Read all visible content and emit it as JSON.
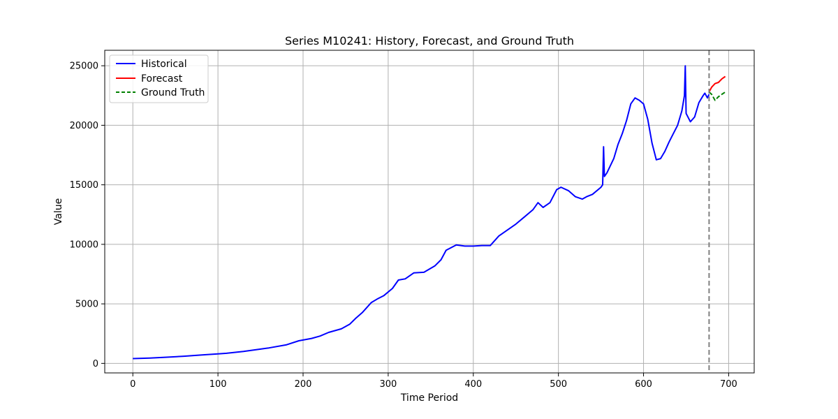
{
  "chart_data": {
    "type": "line",
    "title": "Series M10241: History, Forecast, and Ground Truth",
    "xlabel": "Time Period",
    "ylabel": "Value",
    "xlim": [
      -33,
      730
    ],
    "ylim": [
      -800,
      26300
    ],
    "xticks": [
      0,
      100,
      200,
      300,
      400,
      500,
      600,
      700
    ],
    "yticks": [
      0,
      5000,
      10000,
      15000,
      20000,
      25000
    ],
    "xtick_labels": [
      "0",
      "100",
      "200",
      "300",
      "400",
      "500",
      "600",
      "700"
    ],
    "ytick_labels": [
      "0",
      "5000",
      "10000",
      "15000",
      "20000",
      "25000"
    ],
    "grid": true,
    "legend_position": "top-left",
    "forecast_start": 677,
    "series": [
      {
        "name": "Historical",
        "color": "#0000ff",
        "style": "solid",
        "points": [
          [
            0,
            400
          ],
          [
            20,
            450
          ],
          [
            40,
            520
          ],
          [
            60,
            600
          ],
          [
            80,
            700
          ],
          [
            100,
            800
          ],
          [
            110,
            850
          ],
          [
            130,
            1000
          ],
          [
            150,
            1200
          ],
          [
            160,
            1300
          ],
          [
            180,
            1550
          ],
          [
            195,
            1900
          ],
          [
            210,
            2100
          ],
          [
            220,
            2300
          ],
          [
            230,
            2600
          ],
          [
            245,
            2900
          ],
          [
            255,
            3300
          ],
          [
            262,
            3800
          ],
          [
            270,
            4300
          ],
          [
            280,
            5100
          ],
          [
            287,
            5400
          ],
          [
            295,
            5700
          ],
          [
            305,
            6300
          ],
          [
            312,
            7000
          ],
          [
            320,
            7100
          ],
          [
            330,
            7600
          ],
          [
            342,
            7650
          ],
          [
            355,
            8200
          ],
          [
            362,
            8700
          ],
          [
            368,
            9500
          ],
          [
            380,
            9950
          ],
          [
            390,
            9850
          ],
          [
            400,
            9850
          ],
          [
            410,
            9900
          ],
          [
            420,
            9900
          ],
          [
            430,
            10700
          ],
          [
            440,
            11200
          ],
          [
            450,
            11700
          ],
          [
            460,
            12300
          ],
          [
            470,
            12900
          ],
          [
            476,
            13500
          ],
          [
            482,
            13100
          ],
          [
            490,
            13500
          ],
          [
            498,
            14600
          ],
          [
            503,
            14800
          ],
          [
            512,
            14500
          ],
          [
            520,
            14000
          ],
          [
            528,
            13800
          ],
          [
            533,
            14000
          ],
          [
            540,
            14200
          ],
          [
            550,
            14800
          ],
          [
            552,
            15000
          ],
          [
            553,
            18200
          ],
          [
            554,
            15700
          ],
          [
            557,
            16000
          ],
          [
            565,
            17200
          ],
          [
            570,
            18400
          ],
          [
            575,
            19300
          ],
          [
            580,
            20400
          ],
          [
            585,
            21800
          ],
          [
            590,
            22300
          ],
          [
            595,
            22100
          ],
          [
            600,
            21800
          ],
          [
            605,
            20500
          ],
          [
            610,
            18500
          ],
          [
            615,
            17100
          ],
          [
            620,
            17200
          ],
          [
            625,
            17800
          ],
          [
            630,
            18600
          ],
          [
            635,
            19300
          ],
          [
            640,
            20000
          ],
          [
            645,
            21200
          ],
          [
            648,
            22500
          ],
          [
            649,
            25000
          ],
          [
            650,
            21000
          ],
          [
            655,
            20300
          ],
          [
            660,
            20700
          ],
          [
            665,
            21900
          ],
          [
            670,
            22500
          ],
          [
            672,
            22700
          ],
          [
            675,
            22300
          ],
          [
            677,
            22600
          ]
        ]
      },
      {
        "name": "Forecast",
        "color": "#ff0000",
        "style": "solid",
        "points": [
          [
            677,
            22800
          ],
          [
            680,
            23200
          ],
          [
            684,
            23500
          ],
          [
            688,
            23600
          ],
          [
            692,
            23900
          ],
          [
            696,
            24100
          ]
        ]
      },
      {
        "name": "Ground Truth",
        "color": "#008000",
        "style": "dashed",
        "points": [
          [
            677,
            22800
          ],
          [
            680,
            22600
          ],
          [
            684,
            22100
          ],
          [
            688,
            22400
          ],
          [
            692,
            22600
          ],
          [
            696,
            22800
          ]
        ]
      }
    ]
  }
}
